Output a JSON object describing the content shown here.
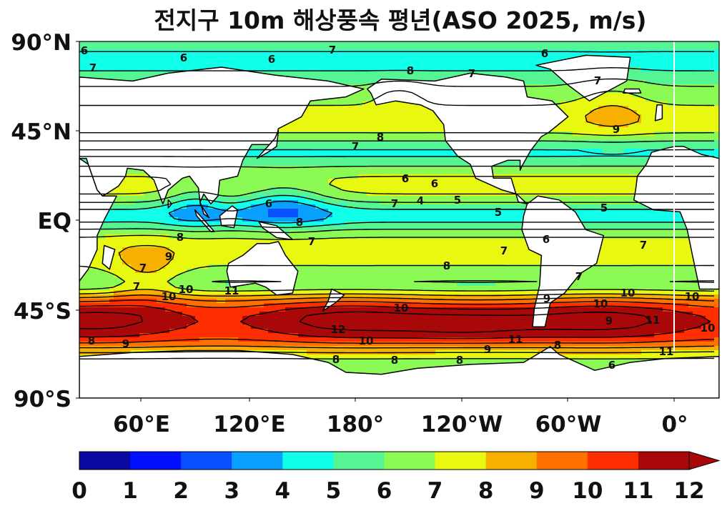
{
  "title": "전지구 10m 해상풍속 평년(ASO 2025, m/s)",
  "map": {
    "lat_ticks": [
      "90°N",
      "45°N",
      "EQ",
      "45°S",
      "90°S"
    ],
    "lon_ticks": [
      "60°E",
      "120°E",
      "180°",
      "120°W",
      "60°W",
      "0°"
    ],
    "land_color": "#ffffff",
    "coastline_color": "#000000"
  },
  "colorbar": {
    "labels": [
      "0",
      "1",
      "2",
      "3",
      "4",
      "5",
      "6",
      "7",
      "8",
      "9",
      "10",
      "11",
      "12"
    ],
    "colors": [
      "#0a08a0",
      "#0010ff",
      "#0a50ff",
      "#0aa0ff",
      "#10ffe8",
      "#55f593",
      "#8cfa55",
      "#e8f810",
      "#f8b000",
      "#ff7000",
      "#ff2e00",
      "#a80808"
    ],
    "extend": "max"
  },
  "contour_labels": [
    "6",
    "7",
    "8",
    "9",
    "10",
    "11",
    "12",
    "4",
    "5"
  ]
}
